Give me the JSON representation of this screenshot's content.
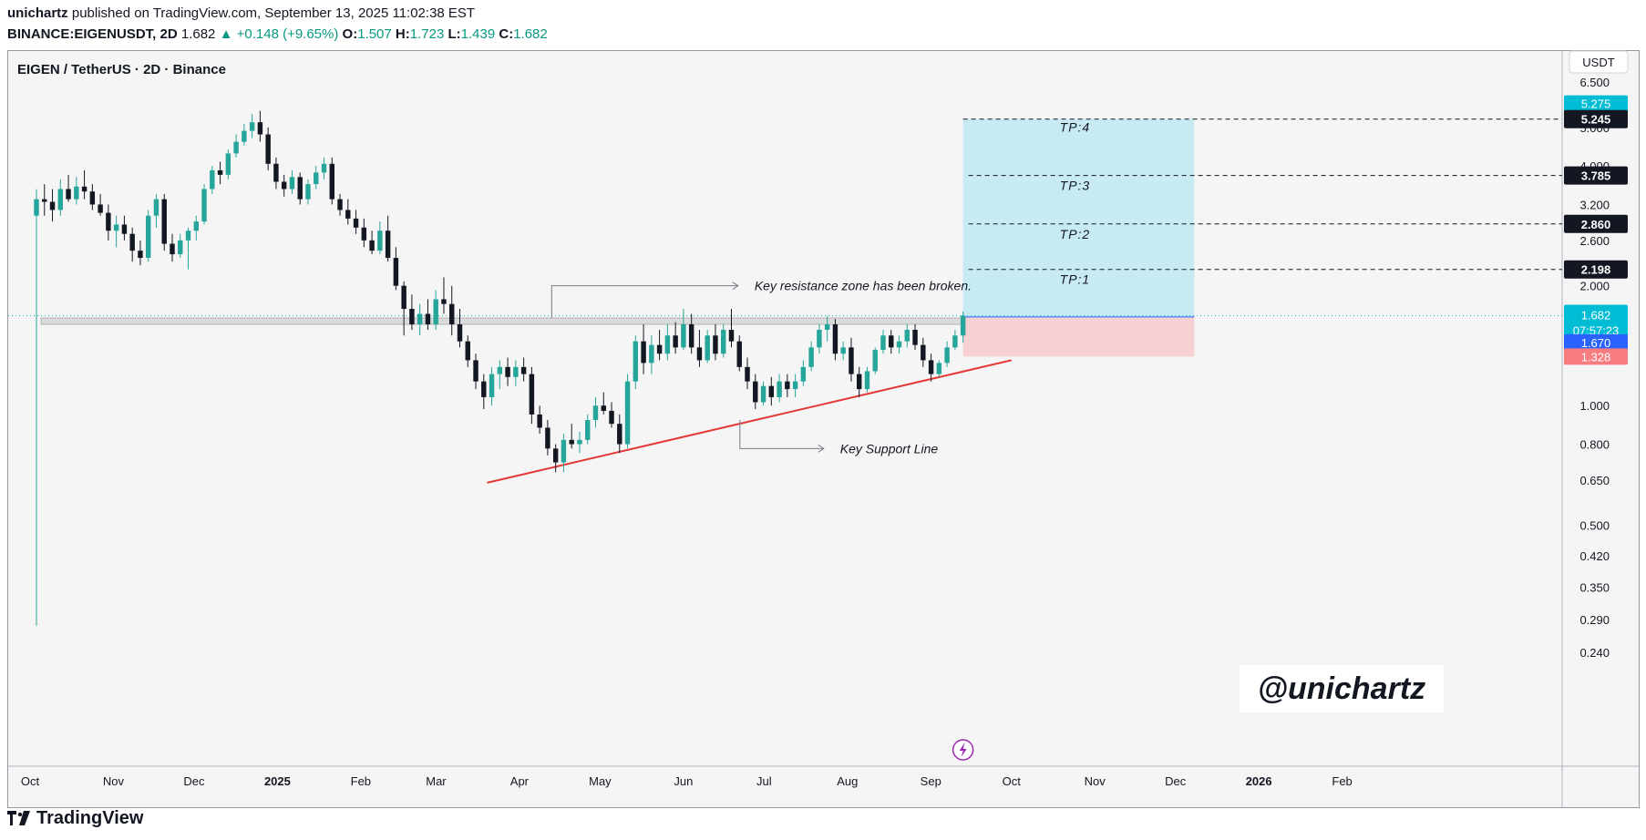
{
  "header": {
    "author": "unichartz",
    "published_text": "published on TradingView.com, September 13, 2025 11:02:38 EST",
    "symbol": "BINANCE:EIGENUSDT, 2D",
    "last": "1.682",
    "change": "+0.148 (+9.65%)",
    "o_label": "O:",
    "o_value": "1.507",
    "h_label": "H:",
    "h_value": "1.723",
    "l_label": "L:",
    "l_value": "1.439",
    "c_label": "C:",
    "c_value": "1.682"
  },
  "plot_title": "EIGEN / TetherUS · 2D · Binance",
  "footer": {
    "brand": "TradingView"
  },
  "colors": {
    "up": "#26a69a",
    "down": "#131722",
    "accent": "#00bcd4",
    "support_line": "#e53935",
    "target_zone": "#c8eaf2",
    "stop_zone": "#f6d0d3",
    "resistance_zone": "#d9d9d9",
    "price_label": "#00bcd4",
    "entry_label": "#2962ff",
    "stop_label": "#f77c80"
  },
  "chart_data": {
    "type": "candlestick",
    "title": "EIGEN / TetherUS · 2D · Binance",
    "y_scale": "log",
    "currency": "USDT",
    "ylim": [
      0.22,
      7.0
    ],
    "y_ticks": [
      "6.500",
      "5.000",
      "4.000",
      "3.200",
      "2.600",
      "2.000",
      "1.000",
      "0.800",
      "0.650",
      "0.500",
      "0.420",
      "0.350",
      "0.290",
      "0.240"
    ],
    "x_ticks": [
      "Oct",
      "Nov",
      "Dec",
      "2025",
      "Feb",
      "Mar",
      "Apr",
      "May",
      "Jun",
      "Jul",
      "Aug",
      "Sep",
      "Oct",
      "Nov",
      "Dec",
      "2026",
      "Feb"
    ],
    "bold_x_ticks": [
      "2025",
      "2026"
    ],
    "price_labels": [
      {
        "value": "5.275",
        "role": "upper-bound"
      },
      {
        "value": "5.245",
        "role": "tp4"
      },
      {
        "value": "3.785",
        "role": "tp3"
      },
      {
        "value": "2.860",
        "role": "tp2"
      },
      {
        "value": "2.198",
        "role": "tp1"
      },
      {
        "value": "1.682",
        "role": "last",
        "countdown": "07:57:23"
      },
      {
        "value": "1.670",
        "role": "entry"
      },
      {
        "value": "1.328",
        "role": "stop"
      }
    ],
    "targets": [
      {
        "label": "TP:1",
        "value": 2.198
      },
      {
        "label": "TP:2",
        "value": 2.86
      },
      {
        "label": "TP:3",
        "value": 3.785
      },
      {
        "label": "TP:4",
        "value": 5.245
      }
    ],
    "trade_box": {
      "entry": 1.67,
      "stop": 1.328,
      "target": 5.245
    },
    "resistance_zone": {
      "low": 1.6,
      "high": 1.66
    },
    "support_line": {
      "from": {
        "date": "2025-03-20",
        "value": 0.64
      },
      "to": {
        "date": "2025-10-01",
        "value": 1.3
      }
    },
    "annotations": [
      "Key resistance zone has been broken.",
      "Key Support Line"
    ],
    "watermark": "@unichartz",
    "candles_ohlc": [
      [
        3.0,
        3.5,
        0.28,
        3.3
      ],
      [
        3.3,
        3.6,
        3.0,
        3.25
      ],
      [
        3.25,
        3.5,
        2.9,
        3.1
      ],
      [
        3.1,
        3.7,
        3.0,
        3.5
      ],
      [
        3.5,
        3.8,
        3.25,
        3.3
      ],
      [
        3.3,
        3.75,
        3.2,
        3.55
      ],
      [
        3.55,
        3.9,
        3.3,
        3.45
      ],
      [
        3.45,
        3.6,
        3.1,
        3.2
      ],
      [
        3.2,
        3.4,
        3.0,
        3.05
      ],
      [
        3.05,
        3.2,
        2.6,
        2.75
      ],
      [
        2.75,
        3.0,
        2.5,
        2.85
      ],
      [
        2.85,
        3.0,
        2.6,
        2.7
      ],
      [
        2.7,
        2.8,
        2.3,
        2.45
      ],
      [
        2.45,
        2.6,
        2.25,
        2.35
      ],
      [
        2.35,
        3.1,
        2.3,
        3.0
      ],
      [
        3.0,
        3.4,
        2.8,
        3.3
      ],
      [
        3.3,
        3.4,
        2.45,
        2.55
      ],
      [
        2.55,
        2.7,
        2.3,
        2.4
      ],
      [
        2.4,
        2.7,
        2.35,
        2.6
      ],
      [
        2.6,
        2.8,
        2.2,
        2.75
      ],
      [
        2.75,
        3.0,
        2.6,
        2.9
      ],
      [
        2.9,
        3.6,
        2.85,
        3.5
      ],
      [
        3.5,
        4.0,
        3.4,
        3.9
      ],
      [
        3.9,
        4.1,
        3.6,
        3.8
      ],
      [
        3.8,
        4.4,
        3.7,
        4.3
      ],
      [
        4.3,
        4.8,
        4.2,
        4.6
      ],
      [
        4.6,
        5.1,
        4.5,
        4.9
      ],
      [
        4.9,
        5.4,
        4.7,
        5.15
      ],
      [
        5.15,
        5.5,
        4.6,
        4.8
      ],
      [
        4.8,
        5.0,
        3.9,
        4.05
      ],
      [
        4.05,
        4.2,
        3.5,
        3.65
      ],
      [
        3.65,
        3.8,
        3.35,
        3.5
      ],
      [
        3.5,
        3.9,
        3.4,
        3.75
      ],
      [
        3.75,
        3.85,
        3.2,
        3.3
      ],
      [
        3.3,
        3.7,
        3.2,
        3.6
      ],
      [
        3.6,
        4.0,
        3.5,
        3.85
      ],
      [
        3.85,
        4.2,
        3.7,
        4.05
      ],
      [
        4.05,
        4.2,
        3.2,
        3.3
      ],
      [
        3.3,
        3.4,
        3.0,
        3.1
      ],
      [
        3.1,
        3.3,
        2.85,
        2.95
      ],
      [
        2.95,
        3.1,
        2.7,
        2.8
      ],
      [
        2.8,
        2.95,
        2.5,
        2.6
      ],
      [
        2.6,
        2.75,
        2.4,
        2.45
      ],
      [
        2.45,
        2.9,
        2.4,
        2.75
      ],
      [
        2.75,
        3.0,
        2.3,
        2.35
      ],
      [
        2.35,
        2.5,
        1.95,
        2.0
      ],
      [
        2.0,
        2.05,
        1.5,
        1.75
      ],
      [
        1.75,
        1.9,
        1.55,
        1.6
      ],
      [
        1.6,
        1.8,
        1.5,
        1.7
      ],
      [
        1.7,
        1.85,
        1.55,
        1.6
      ],
      [
        1.6,
        1.95,
        1.55,
        1.85
      ],
      [
        1.85,
        2.1,
        1.7,
        1.8
      ],
      [
        1.8,
        2.0,
        1.5,
        1.6
      ],
      [
        1.6,
        1.75,
        1.4,
        1.45
      ],
      [
        1.45,
        1.5,
        1.25,
        1.3
      ],
      [
        1.3,
        1.35,
        1.1,
        1.15
      ],
      [
        1.15,
        1.2,
        0.98,
        1.05
      ],
      [
        1.05,
        1.25,
        1.0,
        1.2
      ],
      [
        1.2,
        1.3,
        1.1,
        1.25
      ],
      [
        1.25,
        1.32,
        1.12,
        1.18
      ],
      [
        1.18,
        1.3,
        1.12,
        1.25
      ],
      [
        1.25,
        1.32,
        1.15,
        1.2
      ],
      [
        1.2,
        1.25,
        0.9,
        0.95
      ],
      [
        0.95,
        1.0,
        0.85,
        0.88
      ],
      [
        0.88,
        0.92,
        0.75,
        0.78
      ],
      [
        0.78,
        0.8,
        0.68,
        0.72
      ],
      [
        0.72,
        0.85,
        0.68,
        0.82
      ],
      [
        0.82,
        0.9,
        0.78,
        0.8
      ],
      [
        0.8,
        0.86,
        0.76,
        0.82
      ],
      [
        0.82,
        0.95,
        0.8,
        0.92
      ],
      [
        0.92,
        1.05,
        0.88,
        1.0
      ],
      [
        1.0,
        1.08,
        0.95,
        0.97
      ],
      [
        0.97,
        1.02,
        0.88,
        0.9
      ],
      [
        0.9,
        0.95,
        0.76,
        0.8
      ],
      [
        0.8,
        1.2,
        0.78,
        1.15
      ],
      [
        1.15,
        1.5,
        1.1,
        1.45
      ],
      [
        1.45,
        1.6,
        1.2,
        1.28
      ],
      [
        1.28,
        1.5,
        1.2,
        1.42
      ],
      [
        1.42,
        1.55,
        1.3,
        1.35
      ],
      [
        1.35,
        1.6,
        1.3,
        1.5
      ],
      [
        1.5,
        1.62,
        1.35,
        1.4
      ],
      [
        1.4,
        1.75,
        1.38,
        1.6
      ],
      [
        1.6,
        1.7,
        1.35,
        1.4
      ],
      [
        1.4,
        1.55,
        1.25,
        1.3
      ],
      [
        1.3,
        1.55,
        1.28,
        1.5
      ],
      [
        1.5,
        1.6,
        1.3,
        1.35
      ],
      [
        1.35,
        1.6,
        1.32,
        1.55
      ],
      [
        1.55,
        1.75,
        1.4,
        1.45
      ],
      [
        1.45,
        1.5,
        1.22,
        1.25
      ],
      [
        1.25,
        1.32,
        1.1,
        1.15
      ],
      [
        1.15,
        1.2,
        0.98,
        1.02
      ],
      [
        1.02,
        1.15,
        1.0,
        1.12
      ],
      [
        1.12,
        1.18,
        1.0,
        1.05
      ],
      [
        1.05,
        1.2,
        1.02,
        1.15
      ],
      [
        1.15,
        1.2,
        1.05,
        1.1
      ],
      [
        1.1,
        1.2,
        1.05,
        1.15
      ],
      [
        1.15,
        1.3,
        1.12,
        1.25
      ],
      [
        1.25,
        1.45,
        1.22,
        1.4
      ],
      [
        1.4,
        1.6,
        1.35,
        1.55
      ],
      [
        1.55,
        1.68,
        1.45,
        1.6
      ],
      [
        1.6,
        1.65,
        1.3,
        1.35
      ],
      [
        1.35,
        1.45,
        1.3,
        1.4
      ],
      [
        1.4,
        1.48,
        1.15,
        1.2
      ],
      [
        1.2,
        1.25,
        1.05,
        1.1
      ],
      [
        1.1,
        1.25,
        1.08,
        1.22
      ],
      [
        1.22,
        1.4,
        1.2,
        1.38
      ],
      [
        1.38,
        1.55,
        1.35,
        1.5
      ],
      [
        1.5,
        1.55,
        1.35,
        1.4
      ],
      [
        1.4,
        1.5,
        1.35,
        1.45
      ],
      [
        1.45,
        1.6,
        1.4,
        1.55
      ],
      [
        1.55,
        1.6,
        1.38,
        1.42
      ],
      [
        1.42,
        1.48,
        1.25,
        1.3
      ],
      [
        1.3,
        1.35,
        1.15,
        1.2
      ],
      [
        1.2,
        1.3,
        1.18,
        1.28
      ],
      [
        1.28,
        1.45,
        1.25,
        1.4
      ],
      [
        1.4,
        1.55,
        1.38,
        1.5
      ],
      [
        1.5,
        1.723,
        1.439,
        1.682
      ]
    ]
  }
}
